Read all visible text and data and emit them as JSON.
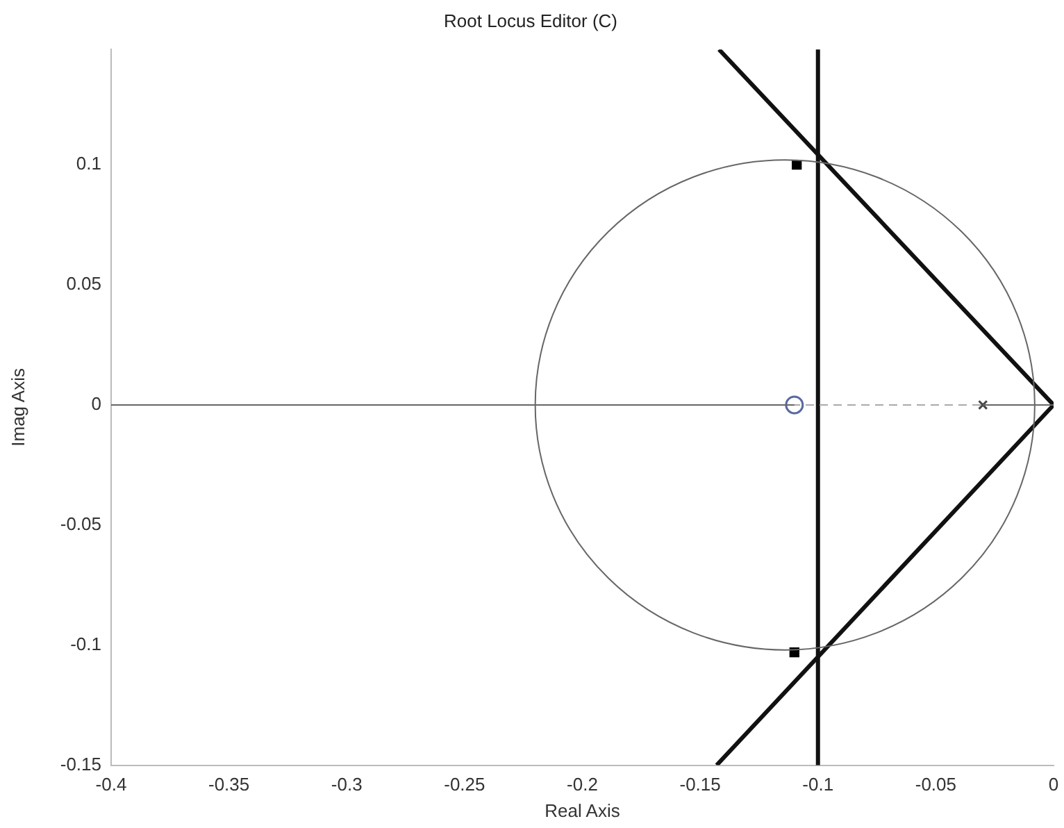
{
  "chart_data": {
    "type": "line",
    "title": "Root Locus Editor (C)",
    "xlabel": "Real Axis",
    "ylabel": "Imag Axis",
    "xlim": [
      -0.4,
      0
    ],
    "xticks": [
      -0.4,
      -0.35,
      -0.3,
      -0.25,
      -0.2,
      -0.15,
      -0.1,
      -0.05,
      0
    ],
    "ylim": [
      -0.15,
      0.148
    ],
    "yticks": [
      -0.15,
      -0.1,
      -0.05,
      0,
      0.05,
      0.1
    ],
    "grid": false,
    "legend": false,
    "series": [
      {
        "color": "#666666",
        "marker": "none",
        "x": [
          -0.4,
          -0.11
        ],
        "values": [
          0,
          0
        ]
      },
      {
        "color": "#666666",
        "marker": "none",
        "x": [
          -0.03,
          0
        ],
        "values": [
          0,
          0
        ]
      },
      {
        "color": "#111111",
        "marker": "none",
        "x": [
          -0.142,
          0,
          -0.143
        ],
        "values": [
          0.148,
          0,
          -0.15
        ]
      },
      {
        "type": "scatter",
        "color": "#5a6aa0",
        "marker": "circle",
        "x": [
          -0.11
        ],
        "values": [
          0
        ]
      },
      {
        "type": "scatter",
        "color": "#444444",
        "marker": "cross",
        "x": [
          -0.03
        ],
        "values": [
          0
        ]
      },
      {
        "type": "scatter",
        "color": "#000000",
        "marker": "square",
        "x": [
          -0.109,
          -0.11
        ],
        "values": [
          0.1,
          -0.103
        ]
      }
    ],
    "ref_lines": [
      {
        "axis": "x",
        "value": -0.1,
        "color": "#111111",
        "line_style": "solid"
      },
      {
        "axis": "y",
        "value": 0,
        "color": "#aaaaaa",
        "line_style": "dashed"
      }
    ]
  }
}
